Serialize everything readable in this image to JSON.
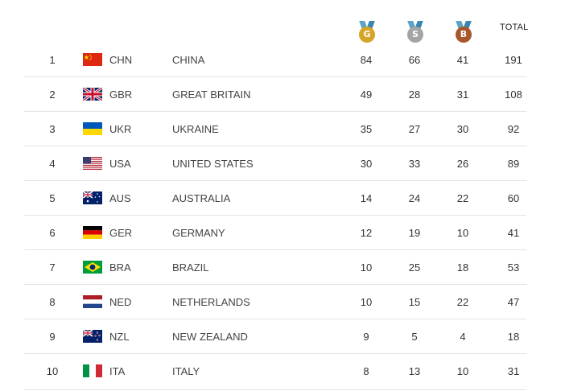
{
  "header": {
    "gold_label": "G",
    "silver_label": "S",
    "bronze_label": "B",
    "total_label": "TOTAL",
    "colors": {
      "gold": "#d6a527",
      "silver": "#a4a4a4",
      "bronze": "#a8562a",
      "ribbon": "#5aa4c8"
    }
  },
  "rows": [
    {
      "rank": "1",
      "flag": "china-flag",
      "code": "CHN",
      "name": "CHINA",
      "gold": "84",
      "silver": "66",
      "bronze": "41",
      "total": "191"
    },
    {
      "rank": "2",
      "flag": "great-britain-flag",
      "code": "GBR",
      "name": "GREAT BRITAIN",
      "gold": "49",
      "silver": "28",
      "bronze": "31",
      "total": "108"
    },
    {
      "rank": "3",
      "flag": "ukraine-flag",
      "code": "UKR",
      "name": "UKRAINE",
      "gold": "35",
      "silver": "27",
      "bronze": "30",
      "total": "92"
    },
    {
      "rank": "4",
      "flag": "usa-flag",
      "code": "USA",
      "name": "UNITED STATES",
      "gold": "30",
      "silver": "33",
      "bronze": "26",
      "total": "89"
    },
    {
      "rank": "5",
      "flag": "australia-flag",
      "code": "AUS",
      "name": "AUSTRALIA",
      "gold": "14",
      "silver": "24",
      "bronze": "22",
      "total": "60"
    },
    {
      "rank": "6",
      "flag": "germany-flag",
      "code": "GER",
      "name": "GERMANY",
      "gold": "12",
      "silver": "19",
      "bronze": "10",
      "total": "41"
    },
    {
      "rank": "7",
      "flag": "brazil-flag",
      "code": "BRA",
      "name": "BRAZIL",
      "gold": "10",
      "silver": "25",
      "bronze": "18",
      "total": "53"
    },
    {
      "rank": "8",
      "flag": "netherlands-flag",
      "code": "NED",
      "name": "NETHERLANDS",
      "gold": "10",
      "silver": "15",
      "bronze": "22",
      "total": "47"
    },
    {
      "rank": "9",
      "flag": "new-zealand-flag",
      "code": "NZL",
      "name": "NEW ZEALAND",
      "gold": "9",
      "silver": "5",
      "bronze": "4",
      "total": "18"
    },
    {
      "rank": "10",
      "flag": "italy-flag",
      "code": "ITA",
      "name": "ITALY",
      "gold": "8",
      "silver": "13",
      "bronze": "10",
      "total": "31"
    }
  ]
}
